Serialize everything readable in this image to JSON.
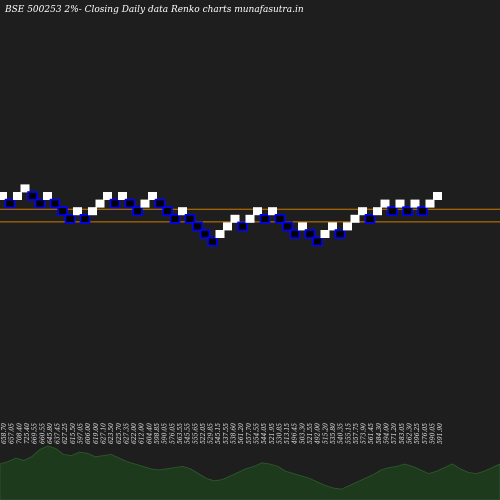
{
  "chart_data": {
    "type": "renko",
    "title": "BSE 500253 2%-  Closing Daily data  Renko  charts munafasutra.in",
    "colors": {
      "background": "#1e1e1e",
      "up_brick": "#ffffff",
      "down_brick": "#0000ff",
      "down_brick_fill": "#000000",
      "reference_line": "#cc7a00",
      "volume_fill": "#1d3a1d"
    },
    "bricks": [
      {
        "level": 0,
        "dir": "up"
      },
      {
        "level": -1,
        "dir": "down"
      },
      {
        "level": 0,
        "dir": "up"
      },
      {
        "level": 1,
        "dir": "up"
      },
      {
        "level": 0,
        "dir": "down"
      },
      {
        "level": -1,
        "dir": "down"
      },
      {
        "level": 0,
        "dir": "up"
      },
      {
        "level": -1,
        "dir": "down"
      },
      {
        "level": -2,
        "dir": "down"
      },
      {
        "level": -3,
        "dir": "down"
      },
      {
        "level": -2,
        "dir": "up"
      },
      {
        "level": -3,
        "dir": "down"
      },
      {
        "level": -2,
        "dir": "up"
      },
      {
        "level": -1,
        "dir": "up"
      },
      {
        "level": 0,
        "dir": "up"
      },
      {
        "level": -1,
        "dir": "down"
      },
      {
        "level": 0,
        "dir": "up"
      },
      {
        "level": -1,
        "dir": "down"
      },
      {
        "level": -2,
        "dir": "down"
      },
      {
        "level": -1,
        "dir": "up"
      },
      {
        "level": 0,
        "dir": "up"
      },
      {
        "level": -1,
        "dir": "down"
      },
      {
        "level": -2,
        "dir": "down"
      },
      {
        "level": -3,
        "dir": "down"
      },
      {
        "level": -2,
        "dir": "up"
      },
      {
        "level": -3,
        "dir": "down"
      },
      {
        "level": -4,
        "dir": "down"
      },
      {
        "level": -5,
        "dir": "down"
      },
      {
        "level": -6,
        "dir": "down"
      },
      {
        "level": -5,
        "dir": "up"
      },
      {
        "level": -4,
        "dir": "up"
      },
      {
        "level": -3,
        "dir": "up"
      },
      {
        "level": -4,
        "dir": "down"
      },
      {
        "level": -3,
        "dir": "up"
      },
      {
        "level": -2,
        "dir": "up"
      },
      {
        "level": -3,
        "dir": "down"
      },
      {
        "level": -2,
        "dir": "up"
      },
      {
        "level": -3,
        "dir": "down"
      },
      {
        "level": -4,
        "dir": "down"
      },
      {
        "level": -5,
        "dir": "down"
      },
      {
        "level": -4,
        "dir": "up"
      },
      {
        "level": -5,
        "dir": "down"
      },
      {
        "level": -6,
        "dir": "down"
      },
      {
        "level": -5,
        "dir": "up"
      },
      {
        "level": -4,
        "dir": "up"
      },
      {
        "level": -5,
        "dir": "down"
      },
      {
        "level": -4,
        "dir": "up"
      },
      {
        "level": -3,
        "dir": "up"
      },
      {
        "level": -2,
        "dir": "up"
      },
      {
        "level": -3,
        "dir": "down"
      },
      {
        "level": -2,
        "dir": "up"
      },
      {
        "level": -1,
        "dir": "up"
      },
      {
        "level": -2,
        "dir": "down"
      },
      {
        "level": -1,
        "dir": "up"
      },
      {
        "level": -2,
        "dir": "down"
      },
      {
        "level": -1,
        "dir": "up"
      },
      {
        "level": -2,
        "dir": "down"
      },
      {
        "level": -1,
        "dir": "up"
      },
      {
        "level": 0,
        "dir": "up"
      }
    ],
    "reference_lines": [
      -1.75,
      -3.4
    ],
    "price_labels": [
      "658.70",
      "657.05",
      "708.40",
      "725.40",
      "669.55",
      "660.55",
      "645.80",
      "637.45",
      "627.25",
      "615.50",
      "597.05",
      "606.00",
      "619.00",
      "627.10",
      "623.50",
      "625.70",
      "627.35",
      "622.00",
      "612.00",
      "604.40",
      "598.85",
      "590.05",
      "576.05",
      "563.55",
      "545.55",
      "555.65",
      "522.05",
      "529.85",
      "545.15",
      "537.55",
      "538.60",
      "561.20",
      "557.70",
      "554.55",
      "544.05",
      "521.95",
      "530.85",
      "513.15",
      "496.45",
      "503.30",
      "521.55",
      "492.00",
      "515.20",
      "535.80",
      "540.35",
      "555.15",
      "557.75",
      "573.90",
      "561.45",
      "584.30",
      "594.00",
      "571.20",
      "583.05",
      "562.30",
      "596.25",
      "576.05",
      "590.05",
      "591.90"
    ],
    "volume": [
      0.3,
      0.32,
      0.35,
      0.33,
      0.36,
      0.42,
      0.45,
      0.43,
      0.38,
      0.37,
      0.4,
      0.39,
      0.36,
      0.37,
      0.38,
      0.35,
      0.32,
      0.3,
      0.28,
      0.26,
      0.25,
      0.26,
      0.27,
      0.28,
      0.26,
      0.22,
      0.18,
      0.16,
      0.17,
      0.2,
      0.23,
      0.26,
      0.28,
      0.31,
      0.3,
      0.28,
      0.24,
      0.22,
      0.2,
      0.18,
      0.15,
      0.12,
      0.1,
      0.09,
      0.12,
      0.15,
      0.18,
      0.21,
      0.25,
      0.27,
      0.28,
      0.3,
      0.28,
      0.25,
      0.22,
      0.24,
      0.27,
      0.3,
      0.26,
      0.23,
      0.22,
      0.24,
      0.27,
      0.3
    ]
  }
}
